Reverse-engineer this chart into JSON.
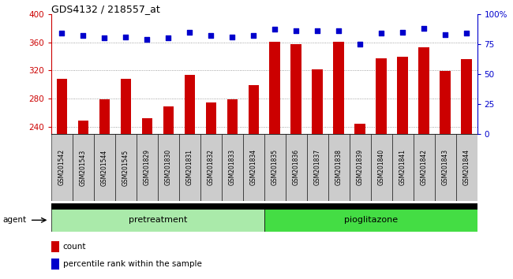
{
  "title": "GDS4132 / 218557_at",
  "samples": [
    "GSM201542",
    "GSM201543",
    "GSM201544",
    "GSM201545",
    "GSM201829",
    "GSM201830",
    "GSM201831",
    "GSM201832",
    "GSM201833",
    "GSM201834",
    "GSM201835",
    "GSM201836",
    "GSM201837",
    "GSM201838",
    "GSM201839",
    "GSM201840",
    "GSM201841",
    "GSM201842",
    "GSM201843",
    "GSM201844"
  ],
  "counts": [
    308,
    249,
    279,
    308,
    252,
    269,
    314,
    275,
    279,
    299,
    361,
    357,
    322,
    361,
    244,
    337,
    339,
    353,
    319,
    336
  ],
  "percentile_ranks": [
    84,
    82,
    80,
    81,
    79,
    80,
    85,
    82,
    81,
    82,
    87,
    86,
    86,
    86,
    75,
    84,
    85,
    88,
    83,
    84
  ],
  "pretreatment_count": 10,
  "pioglitazone_count": 10,
  "ylim_left": [
    230,
    400
  ],
  "ylim_right": [
    0,
    100
  ],
  "yticks_left": [
    240,
    280,
    320,
    360,
    400
  ],
  "yticks_right": [
    0,
    25,
    50,
    75,
    100
  ],
  "bar_color": "#cc0000",
  "dot_color": "#0000cc",
  "pretreatment_color": "#aaeaaa",
  "pioglitazone_color": "#44dd44",
  "grid_color": "#888888",
  "left_axis_color": "#cc0000",
  "right_axis_color": "#0000cc",
  "tick_label_bg": "#cccccc",
  "legend_count_label": "count",
  "legend_pct_label": "percentile rank within the sample"
}
